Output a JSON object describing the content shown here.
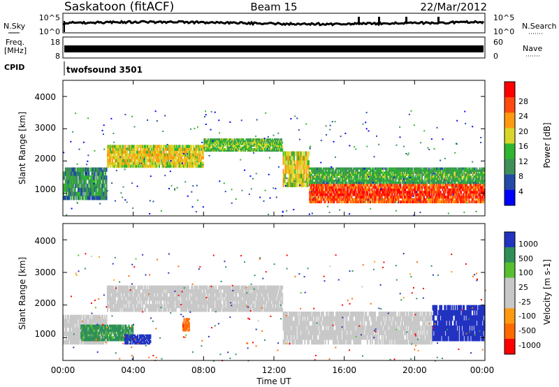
{
  "header": {
    "title": "Saskatoon (fitACF)",
    "beam": "Beam 15",
    "date": "22/Mar/2012"
  },
  "noise_panel": {
    "left_label": "N.Sky",
    "right_label": "N.Search",
    "left_ticks": [
      "10^5",
      "10^0"
    ],
    "right_ticks": [
      "10^5",
      "10^0"
    ]
  },
  "freq_panel": {
    "left_label_line1": "Freq.",
    "left_label_line2": "[MHz]",
    "left_ticks": [
      "18",
      "8"
    ],
    "right_label": "Nave",
    "right_ticks": [
      "60",
      "0"
    ]
  },
  "cpid_panel": {
    "label": "CPID",
    "value": "twofsound 3501"
  },
  "x_axis": {
    "label": "Time UT",
    "ticks": [
      "00:00",
      "04:00",
      "08:00",
      "12:00",
      "16:00",
      "20:00",
      "00:00"
    ]
  },
  "colors": {
    "power": [
      "#0000ff",
      "#224aa6",
      "#3f8f5a",
      "#2fb530",
      "#d8d62a",
      "#ff9a10",
      "#ff4a10",
      "#ff0000"
    ],
    "velocity": [
      "#ff0000",
      "#ff6a00",
      "#ff9a10",
      "#c8c8c8",
      "#c8c8c8",
      "#58c030",
      "#2f8f58",
      "#2233c0"
    ]
  },
  "chart_data": [
    {
      "type": "heatmap",
      "name": "power",
      "ylabel": "Slant Range [km]",
      "yticks": [
        "1000",
        "2000",
        "3000",
        "4000"
      ],
      "ylim": [
        300,
        4500
      ],
      "colorbar_label": "Power [dB]",
      "colorbar_ticks": [
        "4",
        "8",
        "12",
        "16",
        "20",
        "24",
        "28"
      ],
      "scale": [
        0,
        32
      ],
      "features": [
        {
          "t_start": 0.0,
          "t_end": 2.5,
          "range_km": [
            800,
            1800
          ],
          "power_db": 12
        },
        {
          "t_start": 2.5,
          "t_end": 8.0,
          "range_km": [
            1800,
            2500
          ],
          "power_db": 20
        },
        {
          "t_start": 8.0,
          "t_end": 12.5,
          "range_km": [
            2300,
            2700
          ],
          "power_db": 16
        },
        {
          "t_start": 12.5,
          "t_end": 14.0,
          "range_km": [
            1200,
            2300
          ],
          "power_db": 20
        },
        {
          "t_start": 14.0,
          "t_end": 24.0,
          "range_km": [
            700,
            1300
          ],
          "power_db": 28
        },
        {
          "t_start": 14.0,
          "t_end": 24.0,
          "range_km": [
            1300,
            1800
          ],
          "power_db": 14
        }
      ]
    },
    {
      "type": "heatmap",
      "name": "velocity",
      "ylabel": "Slant Range [km]",
      "yticks": [
        "1000",
        "2000",
        "3000",
        "4000"
      ],
      "ylim": [
        300,
        4500
      ],
      "colorbar_label": "Velocity [m s-1]",
      "colorbar_ticks": [
        "1000",
        "500",
        "100",
        "25",
        "-25",
        "-100",
        "-500",
        "-1000"
      ],
      "features": [
        {
          "t_start": 0.0,
          "t_end": 2.5,
          "range_km": [
            800,
            1700
          ],
          "velocity": 0
        },
        {
          "t_start": 1.0,
          "t_end": 4.0,
          "range_km": [
            900,
            1400
          ],
          "velocity": 200
        },
        {
          "t_start": 3.5,
          "t_end": 5.0,
          "range_km": [
            800,
            1100
          ],
          "velocity": 800
        },
        {
          "t_start": 6.8,
          "t_end": 7.2,
          "range_km": [
            1200,
            1600
          ],
          "velocity": -400
        },
        {
          "t_start": 2.5,
          "t_end": 12.5,
          "range_km": [
            1800,
            2600
          ],
          "velocity": 0
        },
        {
          "t_start": 12.5,
          "t_end": 21.0,
          "range_km": [
            800,
            1800
          ],
          "velocity": 0
        },
        {
          "t_start": 21.0,
          "t_end": 24.0,
          "range_km": [
            900,
            2000
          ],
          "velocity": 700
        }
      ]
    }
  ]
}
